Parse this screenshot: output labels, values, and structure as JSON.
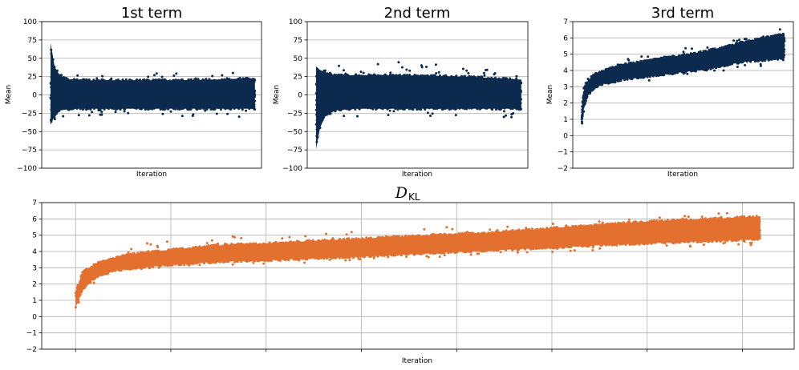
{
  "chart_data": [
    {
      "type": "scatter",
      "title": "1st term",
      "xlabel": "Iteration",
      "ylabel": "Mean",
      "ylim": [
        -100,
        100
      ],
      "yticks": [
        -100,
        -75,
        -50,
        -25,
        0,
        25,
        50,
        75,
        100
      ],
      "ytick_labels": [
        "−100",
        "−75",
        "−50",
        "−25",
        "0",
        "25",
        "50",
        "75",
        "100"
      ],
      "grid": true,
      "color": "#0d2b4e",
      "x_range": [
        0,
        1
      ],
      "envelope": {
        "x": [
          0.0,
          0.02,
          0.05,
          0.1,
          0.2,
          0.4,
          0.6,
          0.8,
          1.0
        ],
        "lower": [
          -42,
          -30,
          -22,
          -20,
          -20,
          -20,
          -20,
          -20,
          -20
        ],
        "upper": [
          72,
          40,
          25,
          22,
          21,
          21,
          21,
          22,
          24
        ],
        "outlier_lower": [
          -52,
          -40,
          -32,
          -30,
          -30,
          -30,
          -30,
          -30,
          -30
        ],
        "outlier_upper": [
          90,
          55,
          30,
          28,
          28,
          30,
          30,
          30,
          32
        ]
      }
    },
    {
      "type": "scatter",
      "title": "2nd term",
      "xlabel": "Iteration",
      "ylabel": "Mean",
      "ylim": [
        -100,
        100
      ],
      "yticks": [
        -100,
        -75,
        -50,
        -25,
        0,
        25,
        50,
        75,
        100
      ],
      "ytick_labels": [
        "−100",
        "−75",
        "−50",
        "−25",
        "0",
        "25",
        "50",
        "75",
        "100"
      ],
      "grid": true,
      "color": "#0d2b4e",
      "x_range": [
        0,
        1
      ],
      "envelope": {
        "x": [
          0.0,
          0.02,
          0.05,
          0.1,
          0.2,
          0.4,
          0.6,
          0.8,
          1.0
        ],
        "lower": [
          -75,
          -45,
          -28,
          -22,
          -20,
          -20,
          -20,
          -20,
          -20
        ],
        "upper": [
          40,
          35,
          30,
          28,
          28,
          28,
          27,
          25,
          22
        ],
        "outlier_lower": [
          -90,
          -55,
          -38,
          -32,
          -30,
          -30,
          -30,
          -30,
          -32
        ],
        "outlier_upper": [
          50,
          45,
          42,
          42,
          42,
          45,
          42,
          35,
          30
        ]
      }
    },
    {
      "type": "scatter",
      "title": "3rd term",
      "xlabel": "Iteration",
      "ylabel": "Mean",
      "ylim": [
        -2,
        7
      ],
      "yticks": [
        -2,
        -1,
        0,
        1,
        2,
        3,
        4,
        5,
        6,
        7
      ],
      "ytick_labels": [
        "−2",
        "−1",
        "0",
        "1",
        "2",
        "3",
        "4",
        "5",
        "6",
        "7"
      ],
      "grid": true,
      "color": "#0d2b4e",
      "x_range": [
        0,
        1
      ],
      "envelope": {
        "x": [
          0.0,
          0.01,
          0.03,
          0.06,
          0.1,
          0.2,
          0.4,
          0.6,
          0.8,
          1.0
        ],
        "lower": [
          0.5,
          1.6,
          2.4,
          2.9,
          3.1,
          3.4,
          3.7,
          4.0,
          4.5,
          4.7
        ],
        "upper": [
          1.5,
          2.8,
          3.4,
          3.8,
          4.0,
          4.4,
          4.8,
          5.2,
          5.8,
          6.3
        ],
        "outlier_lower": [
          0.4,
          1.4,
          2.2,
          2.8,
          3.0,
          3.2,
          3.4,
          3.8,
          4.1,
          4.5
        ],
        "outlier_upper": [
          1.8,
          3.0,
          3.6,
          4.0,
          4.4,
          4.8,
          5.2,
          5.6,
          6.0,
          6.6
        ]
      }
    },
    {
      "type": "scatter",
      "title": "D",
      "title_subscript": "KL",
      "xlabel": "Iteration",
      "ylabel": "",
      "ylim": [
        -2,
        7
      ],
      "yticks": [
        -2,
        -1,
        0,
        1,
        2,
        3,
        4,
        5,
        6,
        7
      ],
      "ytick_labels": [
        "−2",
        "−1",
        "0",
        "1",
        "2",
        "3",
        "4",
        "5",
        "6",
        "7"
      ],
      "grid": true,
      "color": "#e3702f",
      "x_range": [
        0,
        1
      ],
      "envelope": {
        "x": [
          0.0,
          0.01,
          0.03,
          0.06,
          0.1,
          0.2,
          0.4,
          0.6,
          0.8,
          1.0
        ],
        "lower": [
          0.5,
          1.6,
          2.4,
          2.8,
          3.0,
          3.3,
          3.6,
          4.0,
          4.4,
          4.7
        ],
        "upper": [
          1.5,
          2.8,
          3.3,
          3.7,
          4.0,
          4.4,
          4.8,
          5.2,
          5.8,
          6.2
        ],
        "outlier_lower": [
          0.4,
          1.4,
          2.2,
          2.6,
          2.9,
          3.1,
          3.4,
          3.8,
          4.1,
          4.4
        ],
        "outlier_upper": [
          1.8,
          3.0,
          3.6,
          3.9,
          4.5,
          4.9,
          5.3,
          5.6,
          6.0,
          6.5
        ]
      }
    }
  ]
}
